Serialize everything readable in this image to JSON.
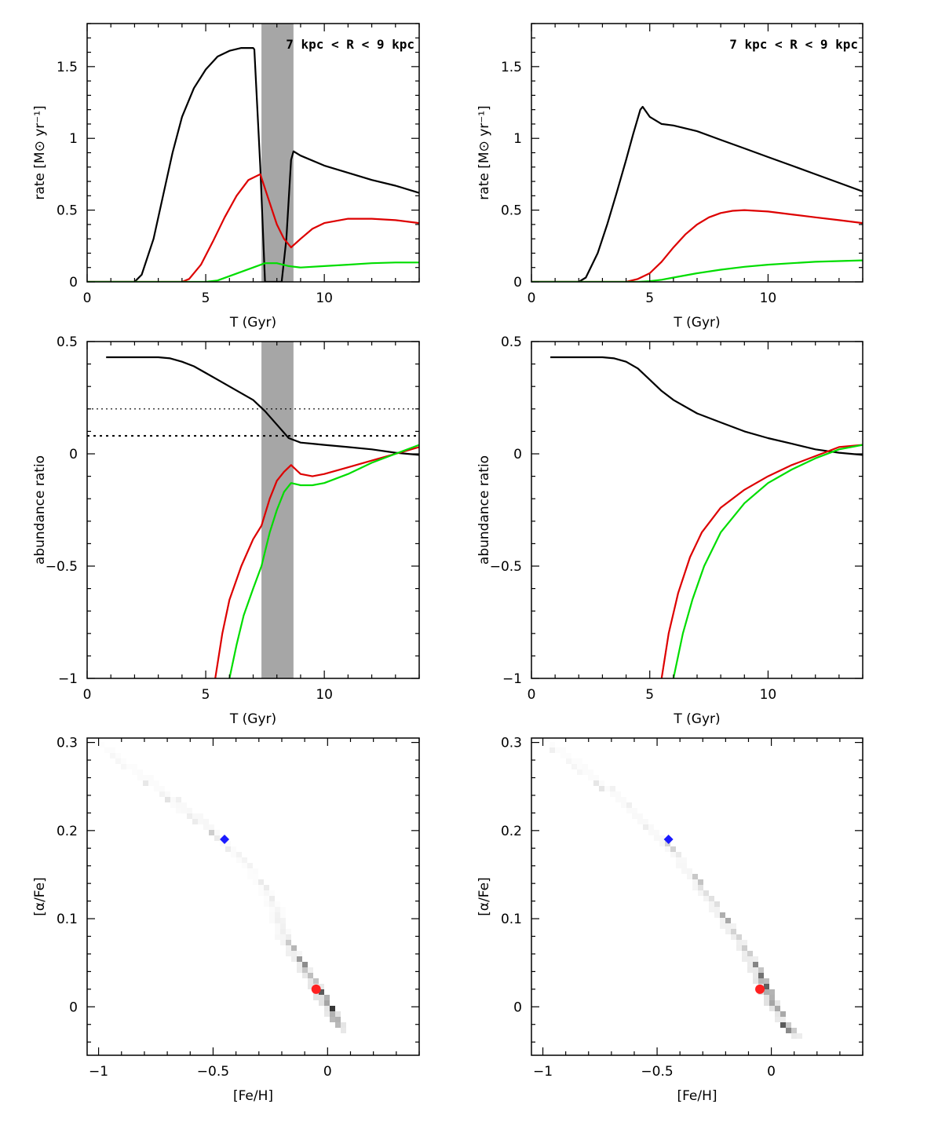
{
  "chart_data": [
    {
      "id": "rate_left",
      "type": "line",
      "xlabel": "T (Gyr)",
      "ylabel": "rate [M⊙ yr⁻¹]",
      "xlim": [
        0,
        14
      ],
      "ylim": [
        0,
        1.8
      ],
      "xticks": [
        0,
        5,
        10
      ],
      "xtick_labels": [
        "0",
        "5",
        "10"
      ],
      "yticks": [
        0,
        0.5,
        1,
        1.5
      ],
      "ytick_labels": [
        "0",
        "0.5",
        "1",
        "1.5"
      ],
      "annotation": "7 kpc < R < 9 kpc",
      "shaded_band": [
        7.35,
        8.7
      ],
      "series": [
        {
          "color": "#000000",
          "x": [
            0,
            2,
            2.3,
            2.8,
            3.2,
            3.6,
            4,
            4.5,
            5,
            5.5,
            6,
            6.5,
            7,
            7.05,
            7.3,
            7.5,
            7.8,
            8.2,
            8.4,
            8.6,
            8.7,
            9,
            10,
            11,
            12,
            13,
            14
          ],
          "y": [
            0,
            0,
            0.05,
            0.3,
            0.6,
            0.9,
            1.15,
            1.35,
            1.48,
            1.57,
            1.61,
            1.63,
            1.63,
            1.62,
            0.8,
            0,
            0,
            0,
            0.3,
            0.85,
            0.91,
            0.88,
            0.81,
            0.76,
            0.71,
            0.67,
            0.62
          ]
        },
        {
          "color": "#dd0000",
          "x": [
            0,
            4,
            4.3,
            4.8,
            5.3,
            5.8,
            6.3,
            6.8,
            7.3,
            7.6,
            8,
            8.3,
            8.6,
            9,
            9.5,
            10,
            11,
            12,
            13,
            14
          ],
          "y": [
            0,
            0,
            0.02,
            0.12,
            0.28,
            0.45,
            0.6,
            0.71,
            0.75,
            0.6,
            0.4,
            0.3,
            0.24,
            0.3,
            0.37,
            0.41,
            0.44,
            0.44,
            0.43,
            0.41
          ]
        },
        {
          "color": "#00dd00",
          "x": [
            0,
            5,
            5.5,
            6,
            6.5,
            7,
            7.5,
            8,
            8.5,
            9,
            10,
            11,
            12,
            13,
            14
          ],
          "y": [
            0,
            0,
            0.01,
            0.04,
            0.07,
            0.1,
            0.13,
            0.13,
            0.11,
            0.1,
            0.11,
            0.12,
            0.13,
            0.135,
            0.135
          ]
        }
      ]
    },
    {
      "id": "rate_right",
      "type": "line",
      "xlabel": "T (Gyr)",
      "ylabel": "rate [M⊙ yr⁻¹]",
      "xlim": [
        0,
        14
      ],
      "ylim": [
        0,
        1.8
      ],
      "xticks": [
        0,
        5,
        10
      ],
      "xtick_labels": [
        "0",
        "5",
        "10"
      ],
      "yticks": [
        0,
        0.5,
        1,
        1.5
      ],
      "ytick_labels": [
        "0",
        "0.5",
        "1",
        "1.5"
      ],
      "annotation": "7 kpc < R < 9 kpc",
      "series": [
        {
          "color": "#000000",
          "x": [
            0,
            2,
            2.3,
            2.8,
            3.2,
            3.6,
            4,
            4.3,
            4.6,
            4.7,
            5,
            5.5,
            6,
            7,
            8,
            9,
            10,
            11,
            12,
            13,
            14
          ],
          "y": [
            0,
            0,
            0.03,
            0.2,
            0.4,
            0.62,
            0.85,
            1.03,
            1.2,
            1.22,
            1.15,
            1.1,
            1.09,
            1.05,
            0.99,
            0.93,
            0.87,
            0.81,
            0.75,
            0.69,
            0.63
          ]
        },
        {
          "color": "#dd0000",
          "x": [
            0,
            4,
            4.5,
            5,
            5.5,
            6,
            6.5,
            7,
            7.5,
            8,
            8.5,
            9,
            10,
            11,
            12,
            13,
            14
          ],
          "y": [
            0,
            0,
            0.02,
            0.06,
            0.14,
            0.24,
            0.33,
            0.4,
            0.45,
            0.48,
            0.495,
            0.5,
            0.49,
            0.47,
            0.45,
            0.43,
            0.41
          ]
        },
        {
          "color": "#00dd00",
          "x": [
            0,
            4.5,
            5,
            5.5,
            6,
            7,
            8,
            9,
            10,
            11,
            12,
            13,
            14
          ],
          "y": [
            0,
            0,
            0.005,
            0.015,
            0.03,
            0.06,
            0.085,
            0.105,
            0.12,
            0.13,
            0.14,
            0.145,
            0.15
          ]
        }
      ]
    },
    {
      "id": "abund_left",
      "type": "line",
      "xlabel": "T (Gyr)",
      "ylabel": "abundance ratio",
      "xlim": [
        0,
        14
      ],
      "ylim": [
        -1,
        0.5
      ],
      "xticks": [
        0,
        5,
        10
      ],
      "xtick_labels": [
        "0",
        "5",
        "10"
      ],
      "yticks": [
        -1,
        -0.5,
        0,
        0.5
      ],
      "ytick_labels": [
        "−1",
        "−0.5",
        "0",
        "0.5"
      ],
      "shaded_band": [
        7.35,
        8.7
      ],
      "hlines": [
        0.2,
        0.08
      ],
      "series": [
        {
          "color": "#000000",
          "x": [
            0.8,
            2,
            3,
            3.5,
            4,
            4.5,
            5,
            5.5,
            6,
            6.5,
            7,
            7.5,
            8,
            8.5,
            9,
            9.5,
            10,
            11,
            12,
            13,
            14
          ],
          "y": [
            0.43,
            0.43,
            0.43,
            0.425,
            0.41,
            0.39,
            0.36,
            0.33,
            0.3,
            0.27,
            0.24,
            0.19,
            0.13,
            0.07,
            0.05,
            0.045,
            0.04,
            0.03,
            0.02,
            0.005,
            -0.005
          ]
        },
        {
          "color": "#dd0000",
          "x": [
            5.4,
            5.7,
            6,
            6.5,
            7,
            7.35,
            7.7,
            8,
            8.3,
            8.6,
            9,
            9.5,
            10,
            11,
            12,
            13,
            14
          ],
          "y": [
            -1,
            -0.8,
            -0.65,
            -0.5,
            -0.38,
            -0.32,
            -0.2,
            -0.12,
            -0.08,
            -0.05,
            -0.09,
            -0.1,
            -0.09,
            -0.06,
            -0.03,
            0,
            0.03
          ]
        },
        {
          "color": "#00dd00",
          "x": [
            6,
            6.3,
            6.6,
            7,
            7.35,
            7.7,
            8,
            8.3,
            8.6,
            9,
            9.5,
            10,
            11,
            12,
            13,
            14
          ],
          "y": [
            -1,
            -0.85,
            -0.72,
            -0.6,
            -0.5,
            -0.35,
            -0.25,
            -0.17,
            -0.13,
            -0.14,
            -0.14,
            -0.13,
            -0.09,
            -0.04,
            0,
            0.04
          ]
        }
      ]
    },
    {
      "id": "abund_right",
      "type": "line",
      "xlabel": "T (Gyr)",
      "ylabel": "abundance ratio",
      "xlim": [
        0,
        14
      ],
      "ylim": [
        -1,
        0.5
      ],
      "xticks": [
        0,
        5,
        10
      ],
      "xtick_labels": [
        "0",
        "5",
        "10"
      ],
      "yticks": [
        -1,
        -0.5,
        0,
        0.5
      ],
      "ytick_labels": [
        "−1",
        "−0.5",
        "0",
        "0.5"
      ],
      "series": [
        {
          "color": "#000000",
          "x": [
            0.8,
            2,
            3,
            3.5,
            4,
            4.5,
            5,
            5.5,
            6,
            7,
            8,
            9,
            10,
            11,
            12,
            13,
            14
          ],
          "y": [
            0.43,
            0.43,
            0.43,
            0.425,
            0.41,
            0.38,
            0.33,
            0.28,
            0.24,
            0.18,
            0.14,
            0.1,
            0.07,
            0.045,
            0.02,
            0.005,
            -0.005
          ]
        },
        {
          "color": "#dd0000",
          "x": [
            5.5,
            5.8,
            6.2,
            6.7,
            7.2,
            8,
            9,
            10,
            11,
            12,
            13,
            14
          ],
          "y": [
            -1,
            -0.8,
            -0.62,
            -0.46,
            -0.35,
            -0.24,
            -0.16,
            -0.1,
            -0.05,
            -0.01,
            0.03,
            0.04
          ]
        },
        {
          "color": "#00dd00",
          "x": [
            6,
            6.4,
            6.8,
            7.3,
            8,
            9,
            10,
            11,
            12,
            13,
            14
          ],
          "y": [
            -1,
            -0.8,
            -0.65,
            -0.5,
            -0.35,
            -0.22,
            -0.13,
            -0.07,
            -0.02,
            0.02,
            0.04
          ]
        }
      ]
    },
    {
      "id": "afe_left",
      "type": "heatmap",
      "xlabel": "[Fe/H]",
      "ylabel": "[α/Fe]",
      "xlim": [
        -1.05,
        0.4
      ],
      "ylim": [
        -0.055,
        0.305
      ],
      "xticks": [
        -1,
        -0.5,
        0
      ],
      "xtick_labels": [
        "−1",
        "−0.5",
        "0"
      ],
      "yticks": [
        0,
        0.1,
        0.2,
        0.3
      ],
      "ytick_labels": [
        "0",
        "0.1",
        "0.2",
        "0.3"
      ],
      "track": [
        [
          -1.0,
          0.3
        ],
        [
          -0.9,
          0.28
        ],
        [
          -0.8,
          0.26
        ],
        [
          -0.7,
          0.24
        ],
        [
          -0.6,
          0.22
        ],
        [
          -0.5,
          0.2
        ],
        [
          -0.4,
          0.175
        ],
        [
          -0.3,
          0.14
        ],
        [
          -0.25,
          0.12
        ],
        [
          -0.2,
          0.08
        ],
        [
          -0.15,
          0.06
        ],
        [
          -0.1,
          0.04
        ],
        [
          -0.05,
          0.02
        ],
        [
          0,
          0.0
        ],
        [
          0.03,
          -0.02
        ]
      ],
      "track_darkness": [
        0.06,
        0.08,
        0.1,
        0.12,
        0.18,
        0.22,
        0.12,
        0.08,
        0.08,
        0.18,
        0.4,
        0.55,
        0.7,
        0.85,
        0.6
      ],
      "points": [
        {
          "x": -0.45,
          "y": 0.19,
          "color": "#1a1aff",
          "shape": "diamond"
        },
        {
          "x": -0.05,
          "y": 0.02,
          "color": "#ff2020",
          "shape": "circle"
        }
      ]
    },
    {
      "id": "afe_right",
      "type": "heatmap",
      "xlabel": "[Fe/H]",
      "ylabel": "[α/Fe]",
      "xlim": [
        -1.05,
        0.4
      ],
      "ylim": [
        -0.055,
        0.305
      ],
      "xticks": [
        -1,
        -0.5,
        0
      ],
      "xtick_labels": [
        "−1",
        "−0.5",
        "0"
      ],
      "yticks": [
        0,
        0.1,
        0.2,
        0.3
      ],
      "ytick_labels": [
        "0",
        "0.1",
        "0.2",
        "0.3"
      ],
      "track": [
        [
          -0.98,
          0.3
        ],
        [
          -0.9,
          0.285
        ],
        [
          -0.8,
          0.265
        ],
        [
          -0.7,
          0.245
        ],
        [
          -0.6,
          0.22
        ],
        [
          -0.5,
          0.195
        ],
        [
          -0.4,
          0.165
        ],
        [
          -0.3,
          0.13
        ],
        [
          -0.2,
          0.095
        ],
        [
          -0.1,
          0.055
        ],
        [
          -0.05,
          0.03
        ],
        [
          0,
          0.0
        ],
        [
          0.05,
          -0.015
        ],
        [
          0.08,
          -0.025
        ]
      ],
      "track_darkness": [
        0.06,
        0.08,
        0.1,
        0.12,
        0.15,
        0.18,
        0.2,
        0.28,
        0.38,
        0.5,
        0.65,
        0.85,
        0.7,
        0.4
      ],
      "points": [
        {
          "x": -0.45,
          "y": 0.19,
          "color": "#1a1aff",
          "shape": "diamond"
        },
        {
          "x": -0.05,
          "y": 0.02,
          "color": "#ff2020",
          "shape": "circle"
        }
      ]
    }
  ]
}
